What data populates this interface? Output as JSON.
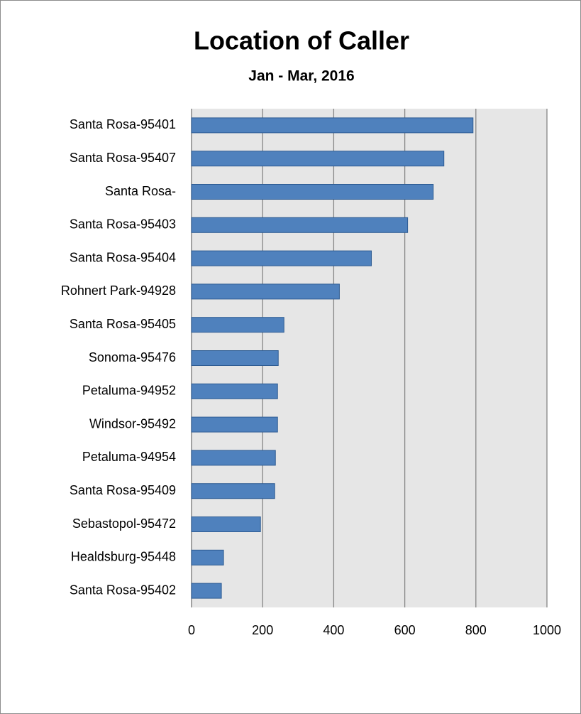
{
  "chart_data": {
    "type": "bar",
    "orientation": "horizontal",
    "title": "Location of Caller",
    "subtitle": "Jan - Mar, 2016",
    "categories": [
      "Santa Rosa-95401",
      "Santa Rosa-95407",
      "Santa Rosa-",
      "Santa Rosa-95403",
      "Santa Rosa-95404",
      "Rohnert Park-94928",
      "Santa Rosa-95405",
      "Sonoma-95476",
      "Petaluma-94952",
      "Windsor-95492",
      "Petaluma-94954",
      "Santa Rosa-95409",
      "Sebastopol-95472",
      "Healdsburg-95448",
      "Santa Rosa-95402"
    ],
    "values": [
      792,
      710,
      680,
      608,
      506,
      416,
      260,
      244,
      242,
      242,
      236,
      234,
      194,
      90,
      84
    ],
    "color": "#4f81bd",
    "xlim": [
      0,
      1000
    ],
    "xticks": [
      0,
      200,
      400,
      600,
      800,
      1000
    ],
    "grid": true
  }
}
